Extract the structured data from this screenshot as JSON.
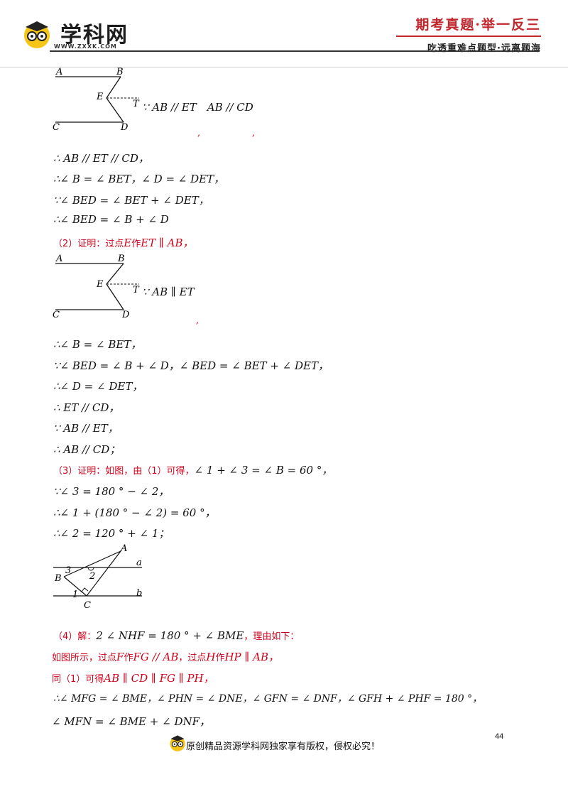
{
  "header": {
    "logo_text": "学科网",
    "logo_url": "WWW.ZXXK.COM",
    "slogan_top": "期考真题·举一反三",
    "slogan_bottom": "吃透重难点题型·远离题海"
  },
  "figure1": {
    "labels": [
      "A",
      "B",
      "E",
      "T",
      "C",
      "D"
    ],
    "text": "∵ AB // ET　AB // CD",
    "commas": [
      ",",
      ","
    ]
  },
  "part1_lines": [
    "∴ AB // ET // CD，",
    "∴∠ B = ∠ BET，∠ D = ∠ DET，",
    "∵∠ BED = ∠ BET + ∠ DET，",
    "∴∠ BED = ∠ B + ∠ D"
  ],
  "part2": {
    "heading_prefix": "（2）证明：过点",
    "heading_math": "E",
    "heading_mid": "作",
    "heading_end": "ET ∥ AB，"
  },
  "figure2": {
    "labels": [
      "A",
      "B",
      "E",
      "T",
      "C",
      "D"
    ],
    "text": "∵ AB ∥ ET",
    "comma": ","
  },
  "part2_lines": [
    "∴∠ B = ∠ BET，",
    "∵∠ BED = ∠ B + ∠ D，∠ BED = ∠ BET + ∠ DET，",
    "∴∠ D = ∠ DET，",
    "∴ ET // CD，",
    "∵ AB // ET，",
    "∴ AB // CD；"
  ],
  "part3": {
    "heading": "（3）证明：如图，由（1）可得，",
    "heading_math": "∠ 1 + ∠ 3 = ∠ B = 60 °，",
    "lines": [
      "∵∠ 3 = 180 ° − ∠ 2，",
      "∴∠ 1 + (180 ° − ∠ 2) = 60 °，",
      "∴∠ 2 = 120 ° + ∠ 1；"
    ]
  },
  "figure3": {
    "labels": [
      "A",
      "a",
      "3",
      "B",
      "2",
      "1",
      "b",
      "C"
    ]
  },
  "part4": {
    "heading_prefix": "（4）解：",
    "heading_math": "2 ∠ NHF = 180 ° + ∠ BME",
    "heading_suffix": "，理由如下：",
    "line2_a": "如图所示，过点",
    "line2_b": "F",
    "line2_c": "作",
    "line2_d": "FG // AB",
    "line2_e": "，过点",
    "line2_f": "H",
    "line2_g": "作",
    "line2_h": "HP ∥ AB，",
    "line3_a": "同（1）可得",
    "line3_b": "AB ∥ CD ∥ FG ∥ PH，",
    "line4": "∴∠ MFG = ∠ BME，∠ PHN = ∠ DNE，∠ GFN = ∠ DNF，∠ GFH + ∠ PHF = 180 °，",
    "line5": "∠ MFN = ∠ BME + ∠ DNF，"
  },
  "page_number": "44",
  "footer": "原创精品资源学科网独家享有版权，侵权必究！"
}
